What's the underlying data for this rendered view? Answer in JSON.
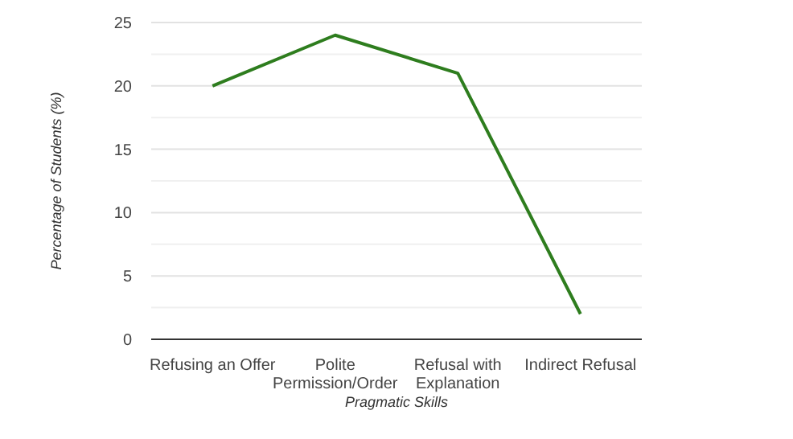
{
  "chart_data": {
    "type": "line",
    "categories": [
      "Refusing an Offer",
      "Polite Permission/Order",
      "Refusal with Explanation",
      "Indirect Refusal"
    ],
    "series": [
      {
        "color": "#2e7d1e",
        "values": [
          20,
          24,
          21,
          2
        ]
      }
    ],
    "xlabel": "Pragmatic Skills",
    "ylabel": "Percentage of Students (%)",
    "ylim": [
      0,
      25
    ],
    "yticks": [
      0,
      {
        "value": 2.5,
        "label": null
      },
      5,
      {
        "value": 7.5,
        "label": null
      },
      10,
      {
        "value": 12.5,
        "label": null
      },
      15,
      {
        "value": 17.5,
        "label": null
      },
      20,
      {
        "value": 22.5,
        "label": null
      },
      25
    ],
    "grid": "y",
    "marker": "none",
    "line_style": "solid"
  }
}
